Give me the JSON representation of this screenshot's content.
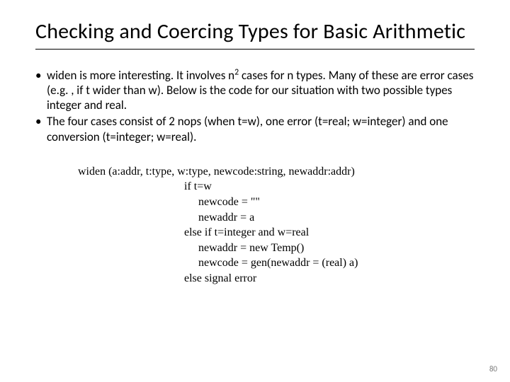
{
  "title": "Checking and Coercing Types for Basic Arithmetic",
  "bullets": {
    "b1_pre": "widen is more interesting. It involves n",
    "b1_sup": "2",
    "b1_post": " cases for n types. Many of these are error cases (e.g. , if t wider than w). Below is the code for our situation with two possible types integer and real.",
    "b2": "The four cases consist of 2 nops (when t=w), one error (t=real; w=integer) and one conversion (t=integer; w=real)."
  },
  "code": {
    "l1": "widen (a:addr, t:type, w:type, newcode:string, newaddr:addr)",
    "l2": "if t=w",
    "l3": "newcode = \"\"",
    "l4": "newaddr = a",
    "l5": "else if t=integer and w=real",
    "l6": "newaddr = new Temp()",
    "l7": "newcode = gen(newaddr = (real) a)",
    "l8": "else signal error"
  },
  "page_number": "80",
  "colors": {
    "background": "#ffffff",
    "text": "#000000",
    "page_num": "#7a7a7a"
  }
}
